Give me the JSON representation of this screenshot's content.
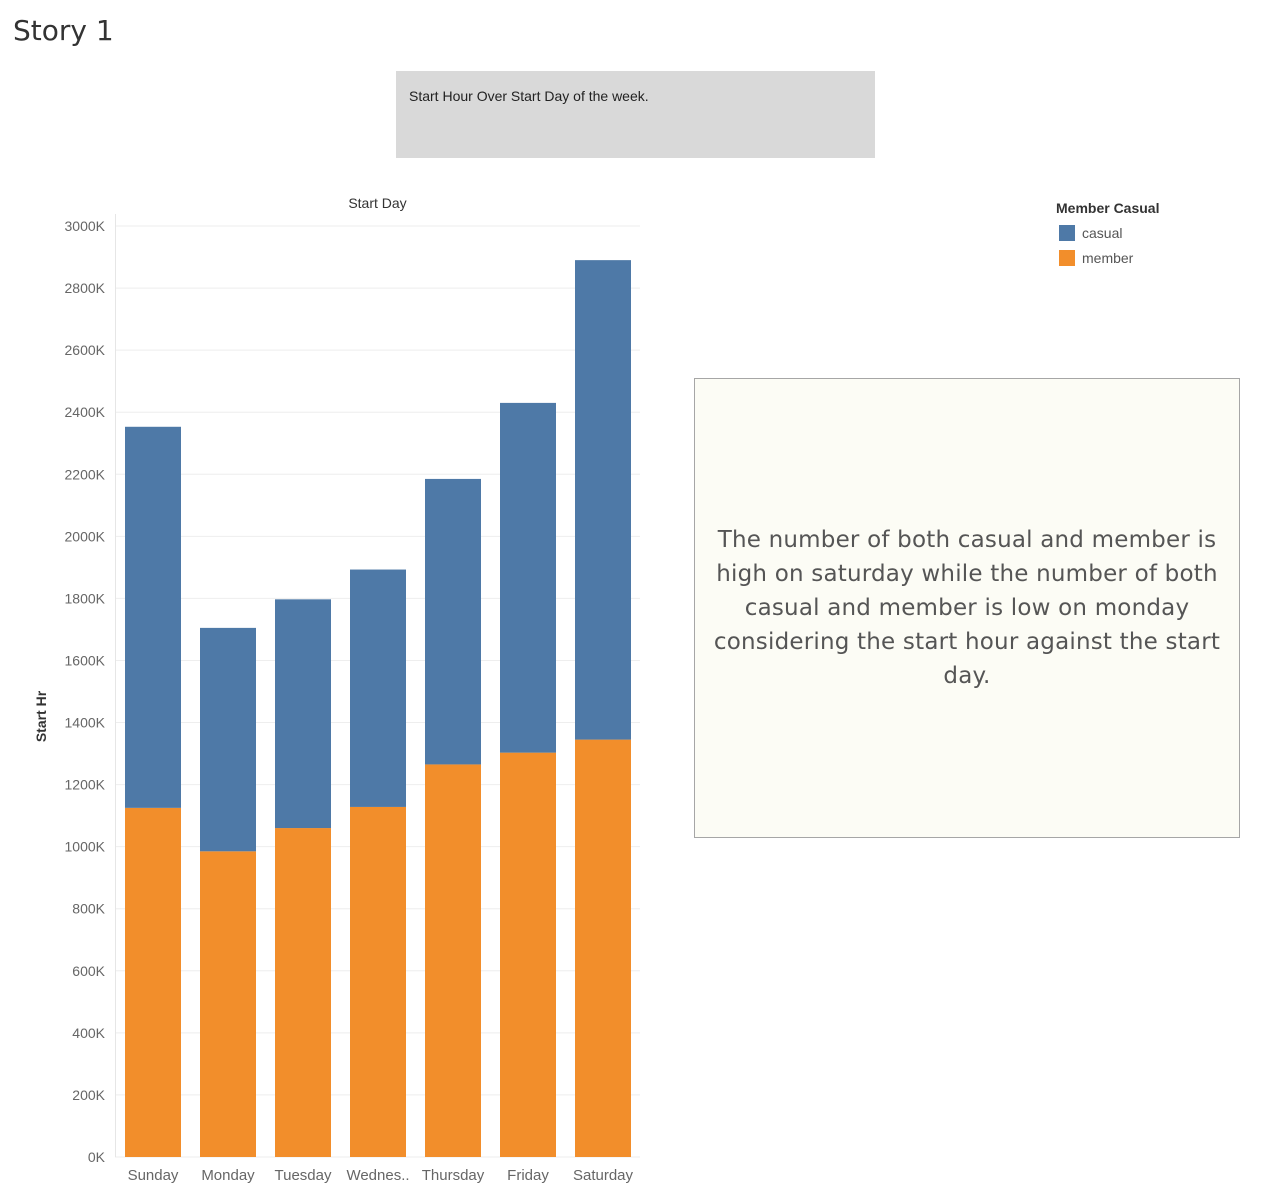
{
  "story": {
    "title": "Story 1"
  },
  "caption": {
    "text": "Start Hour Over Start Day of the week."
  },
  "legend": {
    "title": "Member Casual",
    "items": [
      {
        "label": "casual",
        "color": "#4e79a7"
      },
      {
        "label": "member",
        "color": "#f28e2b"
      }
    ]
  },
  "annotation": {
    "text": "The number of both casual and member is high on saturday while the number of both casual and member is low on monday considering the start hour against the start day."
  },
  "chart_data": {
    "type": "bar",
    "stacked": true,
    "title": "Start Day",
    "xlabel": "Start Day",
    "ylabel": "Start Hr",
    "categories": [
      "Sunday",
      "Monday",
      "Tuesday",
      "Wednes..",
      "Thursday",
      "Friday",
      "Saturday"
    ],
    "series": [
      {
        "name": "member",
        "color": "#f28e2b",
        "values": [
          1125000,
          985000,
          1060000,
          1128000,
          1265000,
          1303000,
          1345000
        ]
      },
      {
        "name": "casual",
        "color": "#4e79a7",
        "values": [
          1228000,
          720000,
          737000,
          765000,
          920000,
          1127000,
          1545000
        ]
      }
    ],
    "ylim": [
      0,
      3000000
    ],
    "yticks": [
      0,
      200000,
      400000,
      600000,
      800000,
      1000000,
      1200000,
      1400000,
      1600000,
      1800000,
      2000000,
      2200000,
      2400000,
      2600000,
      2800000,
      3000000
    ],
    "ytick_labels": [
      "0K",
      "200K",
      "400K",
      "600K",
      "800K",
      "1000K",
      "1200K",
      "1400K",
      "1600K",
      "1800K",
      "2000K",
      "2200K",
      "2400K",
      "2600K",
      "2800K",
      "3000K"
    ],
    "grid": true,
    "legend_position": "top-right"
  }
}
